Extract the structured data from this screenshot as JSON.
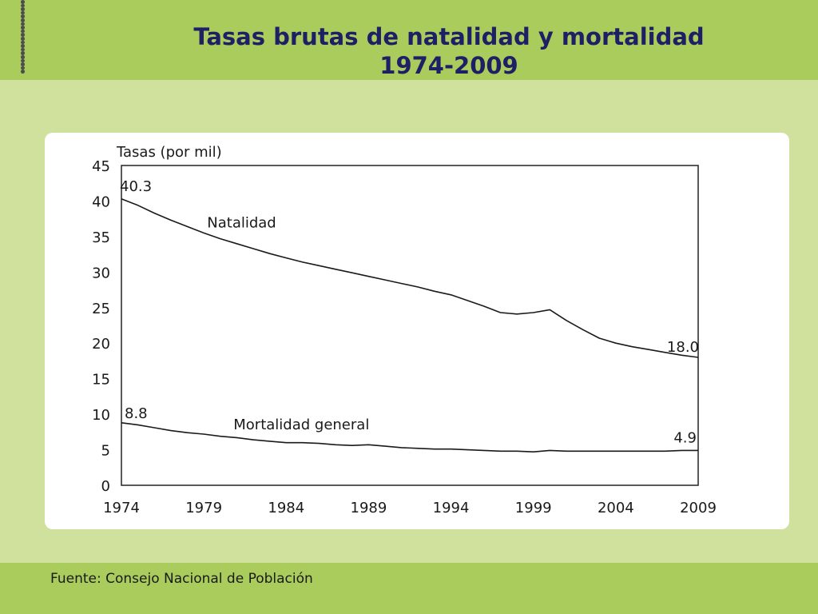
{
  "slide": {
    "title_line1": "Tasas brutas de natalidad y mortalidad",
    "title_line2": "1974-2009",
    "source": "Fuente: Consejo Nacional de Población"
  },
  "chart_data": {
    "type": "line",
    "title": "",
    "xlabel": "",
    "ylabel": "Tasas (por mil)",
    "xlim": [
      1974,
      2009
    ],
    "ylim": [
      0,
      45
    ],
    "x_ticks": [
      "1974",
      "1979",
      "1984",
      "1989",
      "1994",
      "1999",
      "2004",
      "2009"
    ],
    "y_ticks": [
      "0",
      "5",
      "10",
      "15",
      "20",
      "25",
      "30",
      "35",
      "40",
      "45"
    ],
    "grid": false,
    "legend": "none",
    "series": [
      {
        "name": "Natalidad",
        "color": "#1a1a1a",
        "x": [
          1974,
          1975,
          1976,
          1977,
          1978,
          1979,
          1980,
          1981,
          1982,
          1983,
          1984,
          1985,
          1986,
          1987,
          1988,
          1989,
          1990,
          1991,
          1992,
          1993,
          1994,
          1995,
          1996,
          1997,
          1998,
          1999,
          2000,
          2001,
          2002,
          2003,
          2004,
          2005,
          2006,
          2007,
          2008,
          2009
        ],
        "values": [
          40.3,
          39.4,
          38.3,
          37.3,
          36.4,
          35.5,
          34.7,
          34.0,
          33.3,
          32.6,
          32.0,
          31.4,
          30.9,
          30.4,
          29.9,
          29.4,
          28.9,
          28.4,
          27.9,
          27.3,
          26.8,
          26.0,
          25.2,
          24.3,
          24.1,
          24.3,
          24.7,
          23.2,
          21.9,
          20.7,
          20.0,
          19.5,
          19.1,
          18.7,
          18.3,
          18.0
        ],
        "start_label": "40.3",
        "end_label": "18.0"
      },
      {
        "name": "Mortalidad general",
        "color": "#1a1a1a",
        "x": [
          1974,
          1975,
          1976,
          1977,
          1978,
          1979,
          1980,
          1981,
          1982,
          1983,
          1984,
          1985,
          1986,
          1987,
          1988,
          1989,
          1990,
          1991,
          1992,
          1993,
          1994,
          1995,
          1996,
          1997,
          1998,
          1999,
          2000,
          2001,
          2002,
          2003,
          2004,
          2005,
          2006,
          2007,
          2008,
          2009
        ],
        "values": [
          8.8,
          8.5,
          8.1,
          7.7,
          7.4,
          7.2,
          6.9,
          6.7,
          6.4,
          6.2,
          6.0,
          6.0,
          5.9,
          5.7,
          5.6,
          5.7,
          5.5,
          5.3,
          5.2,
          5.1,
          5.1,
          5.0,
          4.9,
          4.8,
          4.8,
          4.7,
          4.9,
          4.8,
          4.8,
          4.8,
          4.8,
          4.8,
          4.8,
          4.8,
          4.9,
          4.9
        ],
        "start_label": "8.8",
        "end_label": "4.9"
      }
    ]
  }
}
